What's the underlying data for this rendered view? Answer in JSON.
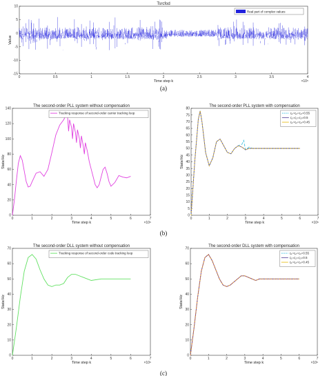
{
  "captions": [
    "(a)",
    "(b)",
    "(c)"
  ],
  "chart_data": [
    {
      "id": "a",
      "type": "line",
      "title": "Tsrcfod",
      "xlabel": "Time step k",
      "ylabel": "Value",
      "x_exponent": "×10⁵",
      "xlim": [
        0,
        4
      ],
      "ylim": [
        -15,
        10
      ],
      "xticks": [
        "0",
        "0.5",
        "1",
        "1.5",
        "2",
        "2.5",
        "3",
        "3.5",
        "4"
      ],
      "yticks": [
        "10",
        "5",
        "0",
        "-5",
        "-10",
        "-15"
      ],
      "legend": [
        "Real part of complex values"
      ],
      "legend_position": "top-right",
      "series_color": "#2222dd",
      "signal_band": {
        "mean": 0,
        "dense_amplitude": 2.2,
        "spike_amplitude": 7,
        "quiet_interval": [
          2.05,
          2.75
        ],
        "quiet_amplitude": 1.3
      }
    },
    {
      "id": "b-left",
      "type": "line",
      "title": "The second-order PLL system without compensation",
      "xlabel": "Time step k",
      "ylabel": "State/Hz",
      "x_exponent": "×10⁶",
      "xlim": [
        0,
        7
      ],
      "ylim": [
        0,
        140
      ],
      "xticks": [
        "0",
        "1",
        "2",
        "3",
        "4",
        "5",
        "6",
        "7"
      ],
      "yticks": [
        "0",
        "20",
        "40",
        "60",
        "80",
        "100",
        "120",
        "140"
      ],
      "legend_position": "top-right",
      "series": [
        {
          "name": "Tracking response of second-order carrier tracking loop",
          "color": "#e040e0",
          "x": [
            0,
            0.1,
            0.2,
            0.3,
            0.4,
            0.5,
            0.6,
            0.7,
            0.8,
            0.9,
            1.0,
            1.2,
            1.4,
            1.6,
            1.8,
            2.0,
            2.2,
            2.4,
            2.6,
            2.7,
            2.8,
            2.85,
            2.9,
            3.0,
            3.05,
            3.1,
            3.2,
            3.25,
            3.3,
            3.4,
            3.45,
            3.5,
            3.6,
            3.65,
            3.7,
            3.8,
            3.9,
            4.0,
            4.1,
            4.2,
            4.3,
            4.4,
            4.5,
            4.6,
            4.7,
            4.8,
            4.9,
            5.0,
            5.2,
            5.4,
            5.6,
            5.8,
            6.0
          ],
          "y": [
            0,
            20,
            45,
            68,
            78,
            72,
            58,
            44,
            37,
            38,
            44,
            55,
            57,
            51,
            60,
            82,
            105,
            118,
            125,
            130,
            128,
            110,
            125,
            115,
            100,
            120,
            108,
            95,
            112,
            100,
            88,
            104,
            90,
            80,
            95,
            84,
            70,
            60,
            50,
            40,
            36,
            40,
            50,
            60,
            63,
            55,
            44,
            38,
            43,
            52,
            50,
            49,
            51
          ]
        }
      ]
    },
    {
      "id": "b-right",
      "type": "line",
      "title": "The second-order PLL system with compensation",
      "xlabel": "Time step k",
      "ylabel": "State/Hz",
      "x_exponent": "×10⁶",
      "xlim": [
        0,
        7
      ],
      "ylim": [
        0,
        80
      ],
      "xticks": [
        "0",
        "1",
        "2",
        "3",
        "4",
        "5",
        "6",
        "7"
      ],
      "yticks": [
        "0",
        "5",
        "10",
        "15",
        "20",
        "25",
        "30",
        "35",
        "40",
        "45",
        "50",
        "55",
        "60",
        "65",
        "70",
        "75",
        "80"
      ],
      "legend_position": "top-right",
      "series": [
        {
          "name": "ς₁=ς₂=ς₃=0.55",
          "color": "#40c0e0",
          "x": [
            0,
            0.2,
            0.4,
            0.5,
            0.6,
            0.8,
            1.0,
            1.2,
            1.4,
            1.6,
            1.8,
            2.0,
            2.2,
            2.4,
            2.6,
            2.8,
            2.9,
            3.0,
            3.2,
            3.4,
            3.6,
            3.8,
            4.0,
            4.5,
            5.0,
            5.5,
            6.0
          ],
          "y": [
            0,
            40,
            72,
            78,
            70,
            47,
            37,
            43,
            55,
            57,
            52,
            47,
            46,
            50,
            52,
            53,
            56,
            49,
            51,
            50,
            50,
            50,
            50,
            50,
            50,
            50,
            50
          ]
        },
        {
          "name": "ς₁=ς₂=ς₃=0.5",
          "color": "#6050a0",
          "x": [
            0,
            0.2,
            0.4,
            0.5,
            0.6,
            0.8,
            1.0,
            1.2,
            1.4,
            1.6,
            1.8,
            2.0,
            2.2,
            2.4,
            2.6,
            2.8,
            3.0,
            3.2,
            3.4,
            3.6,
            3.8,
            4.0,
            4.5,
            5.0,
            5.5,
            6.0
          ],
          "y": [
            0,
            40,
            72,
            78,
            70,
            47,
            37,
            43,
            55,
            57,
            52,
            47,
            46,
            50,
            52,
            51,
            49,
            50,
            50,
            50,
            50,
            50,
            50,
            50,
            50,
            50
          ]
        },
        {
          "name": "ς₁=ς₂=ς₃=0.45",
          "color": "#e8c020",
          "x": [
            0,
            0.2,
            0.4,
            0.5,
            0.6,
            0.8,
            1.0,
            1.2,
            1.4,
            1.6,
            1.8,
            2.0,
            2.2,
            2.4,
            2.6,
            2.8,
            3.0,
            3.2,
            3.4,
            3.6,
            3.8,
            4.0,
            4.5,
            5.0,
            5.5,
            6.0
          ],
          "y": [
            0,
            40,
            72,
            78,
            70,
            47,
            37,
            43,
            55,
            57,
            52,
            47,
            46,
            50,
            52,
            51,
            49,
            50,
            50,
            50,
            50,
            50,
            50,
            50,
            50,
            50
          ]
        }
      ]
    },
    {
      "id": "c-left",
      "type": "line",
      "title": "The second-order DLL system without compensation",
      "xlabel": "Time step k",
      "ylabel": "State/Hz",
      "x_exponent": "×10⁶",
      "xlim": [
        0,
        7
      ],
      "ylim": [
        0,
        70
      ],
      "xticks": [
        "0",
        "1",
        "2",
        "3",
        "4",
        "5",
        "6",
        "7"
      ],
      "yticks": [
        "0",
        "10",
        "20",
        "30",
        "40",
        "50",
        "60",
        "70"
      ],
      "legend_position": "top-right",
      "series": [
        {
          "name": "Tracking response of second-order code tracking loop",
          "color": "#60e060",
          "x": [
            0,
            0.2,
            0.4,
            0.6,
            0.8,
            1.0,
            1.2,
            1.4,
            1.6,
            1.8,
            2.0,
            2.2,
            2.4,
            2.6,
            2.8,
            3.0,
            3.2,
            3.4,
            3.6,
            3.8,
            4.0,
            4.5,
            5.0,
            5.5,
            6.0
          ],
          "y": [
            0,
            18,
            38,
            55,
            64,
            66,
            63,
            56,
            50,
            46,
            45,
            46,
            46,
            47,
            51,
            53,
            53,
            52,
            51,
            50,
            49,
            50,
            50,
            50,
            50
          ]
        }
      ]
    },
    {
      "id": "c-right",
      "type": "line",
      "title": "The second-order DLL system with compensation",
      "xlabel": "Time step k",
      "ylabel": "State/Hz",
      "x_exponent": "×10⁶",
      "xlim": [
        0,
        7
      ],
      "ylim": [
        0,
        70
      ],
      "xticks": [
        "0",
        "1",
        "2",
        "3",
        "4",
        "5",
        "6",
        "7"
      ],
      "yticks": [
        "0",
        "10",
        "20",
        "30",
        "40",
        "50",
        "60",
        "70"
      ],
      "legend_position": "top-right",
      "series": [
        {
          "name": "ς₁=ς₂=ς₃=0.55",
          "color": "#40c0e0",
          "x": [
            0,
            0.2,
            0.4,
            0.6,
            0.8,
            1.0,
            1.2,
            1.4,
            1.6,
            1.8,
            2.0,
            2.2,
            2.4,
            2.6,
            2.8,
            3.0,
            3.2,
            3.4,
            3.6,
            3.8,
            4.0,
            4.5,
            5.0,
            5.5,
            6.0
          ],
          "y": [
            0,
            18,
            38,
            55,
            64,
            66,
            62,
            56,
            50,
            46,
            45,
            46,
            48,
            50,
            52,
            52,
            51,
            50,
            49,
            50,
            50,
            50,
            50,
            50,
            50
          ]
        },
        {
          "name": "ς₁=ς₂=ς₃=0.5",
          "color": "#6050a0",
          "x": [
            0,
            0.2,
            0.4,
            0.6,
            0.8,
            1.0,
            1.2,
            1.4,
            1.6,
            1.8,
            2.0,
            2.2,
            2.4,
            2.6,
            2.8,
            3.0,
            3.2,
            3.4,
            3.6,
            3.8,
            4.0,
            4.5,
            5.0,
            5.5,
            6.0
          ],
          "y": [
            0,
            18,
            38,
            55,
            64,
            66,
            62,
            56,
            50,
            46,
            45,
            46,
            48,
            50,
            52,
            52,
            51,
            50,
            49,
            50,
            50,
            50,
            50,
            50,
            50
          ]
        },
        {
          "name": "ς₁=ς₂=ς₃=0.45",
          "color": "#e8c020",
          "x": [
            0,
            0.2,
            0.4,
            0.6,
            0.8,
            1.0,
            1.2,
            1.4,
            1.6,
            1.8,
            2.0,
            2.2,
            2.4,
            2.6,
            2.8,
            3.0,
            3.2,
            3.4,
            3.6,
            3.8,
            4.0,
            4.5,
            5.0,
            5.5,
            6.0
          ],
          "y": [
            0,
            18,
            38,
            55,
            64,
            66,
            62,
            56,
            50,
            46,
            45,
            46,
            48,
            50,
            52,
            52,
            51,
            50,
            49,
            50,
            50,
            50,
            50,
            50,
            50
          ]
        },
        {
          "name": "",
          "color": "#e04040",
          "x": [
            0,
            0.2,
            0.4,
            0.6,
            0.8,
            1.0,
            1.2,
            1.4,
            1.6,
            1.8,
            2.0,
            2.2,
            2.4,
            2.6,
            2.8,
            3.0,
            3.2,
            3.4,
            3.6,
            3.8,
            4.0,
            4.5,
            5.0,
            5.5,
            6.0
          ],
          "y": [
            0,
            18,
            38,
            55,
            64,
            66,
            62,
            56,
            50,
            46,
            45,
            46,
            48,
            50,
            52,
            52,
            51,
            50,
            49,
            50,
            50,
            50,
            50,
            50,
            50
          ]
        }
      ]
    }
  ]
}
